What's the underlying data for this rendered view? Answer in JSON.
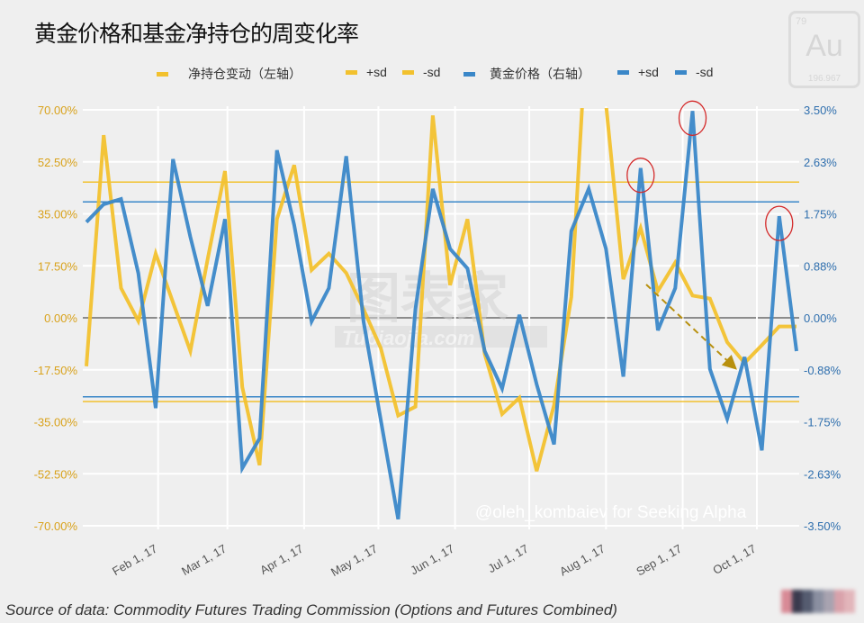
{
  "title": "黄金价格和基金净持仓的周变化率",
  "logo": {
    "number": "79",
    "symbol": "Au",
    "weight": "196.967"
  },
  "legend": [
    {
      "label": "净持仓变动（左轴）",
      "color": "#f2c12e"
    },
    {
      "label": "+sd",
      "color": "#f2c12e"
    },
    {
      "label": "-sd",
      "color": "#f2c12e"
    },
    {
      "label": "黄金价格（右轴）",
      "color": "#3a87c8"
    },
    {
      "label": "+sd",
      "color": "#3a87c8"
    },
    {
      "label": "-sd",
      "color": "#3a87c8"
    }
  ],
  "watermarks": {
    "cn": "图表家",
    "site": "Tubiaojia.com",
    "credit": "@oleh_kombaiev for Seeking Alpha"
  },
  "source": "Source of data: Commodity Futures Trading Commission (Options and Futures Combined)",
  "chart_data": {
    "type": "line",
    "title": "黄金价格和基金净持仓的周变化率",
    "grid": true,
    "legend_position": "top",
    "x": [
      "2017-01-03",
      "2017-01-10",
      "2017-01-17",
      "2017-01-24",
      "2017-01-31",
      "2017-02-07",
      "2017-02-14",
      "2017-02-21",
      "2017-02-28",
      "2017-03-07",
      "2017-03-14",
      "2017-03-21",
      "2017-03-28",
      "2017-04-04",
      "2017-04-11",
      "2017-04-18",
      "2017-04-25",
      "2017-05-02",
      "2017-05-09",
      "2017-05-16",
      "2017-05-23",
      "2017-05-30",
      "2017-06-06",
      "2017-06-13",
      "2017-06-20",
      "2017-06-27",
      "2017-07-04",
      "2017-07-11",
      "2017-07-18",
      "2017-07-25",
      "2017-08-01",
      "2017-08-08",
      "2017-08-15",
      "2017-08-22",
      "2017-08-29",
      "2017-09-05",
      "2017-09-12",
      "2017-09-19",
      "2017-09-26",
      "2017-10-03",
      "2017-10-10",
      "2017-10-17"
    ],
    "x_ticks": [
      {
        "date": "2017-02-01",
        "label": "Feb 1, 17"
      },
      {
        "date": "2017-03-01",
        "label": "Mar 1, 17"
      },
      {
        "date": "2017-04-01",
        "label": "Apr 1, 17"
      },
      {
        "date": "2017-05-01",
        "label": "May 1, 17"
      },
      {
        "date": "2017-06-01",
        "label": "Jun 1, 17"
      },
      {
        "date": "2017-07-01",
        "label": "Jul 1, 17"
      },
      {
        "date": "2017-08-01",
        "label": "Aug 1, 17"
      },
      {
        "date": "2017-09-01",
        "label": "Sep 1, 17"
      },
      {
        "date": "2017-10-01",
        "label": "Oct 1, 17"
      }
    ],
    "y_left": {
      "range": [
        -70,
        70
      ],
      "ticks": [
        "70.00%",
        "52.50%",
        "35.00%",
        "17.50%",
        "0.00%",
        "-17.50%",
        "-35.00%",
        "-52.50%",
        "-70.00%"
      ],
      "color": "#d9a21b"
    },
    "y_right": {
      "range": [
        -3.5,
        3.5
      ],
      "ticks": [
        "3.50%",
        "2.63%",
        "1.75%",
        "0.88%",
        "0.00%",
        "-0.88%",
        "-1.75%",
        "-2.63%",
        "-3.50%"
      ],
      "color": "#2f6fae"
    },
    "series": [
      {
        "name": "净持仓变动（左轴）",
        "axis": "left",
        "color": "#f2c12e",
        "values": [
          -16.3,
          61.5,
          10,
          -1.1,
          21.6,
          5.2,
          -11.2,
          19.7,
          49.4,
          -23.3,
          -49.6,
          33.2,
          51.4,
          16.1,
          21.6,
          15.1,
          2.9,
          -10.2,
          -32.9,
          -29.9,
          68.1,
          11,
          33.2,
          -12.2,
          -32.4,
          -26.9,
          -51.6,
          -29.4,
          7,
          110,
          72,
          13,
          30.2,
          9,
          18.6,
          7.5,
          6.5,
          -8.2,
          -15.2,
          -9.2,
          -2.9,
          -2.9
        ]
      },
      {
        "name": "黄金价格（右轴）",
        "axis": "right",
        "color": "#3a87c8",
        "values": [
          1.61,
          1.91,
          2.0,
          0.75,
          -1.52,
          2.67,
          1.36,
          0.2,
          1.66,
          -2.53,
          -2.03,
          2.82,
          1.56,
          -0.06,
          0.5,
          2.72,
          -0.06,
          -1.72,
          -3.39,
          0.15,
          2.17,
          1.16,
          0.83,
          -0.56,
          -1.19,
          0.05,
          -1.12,
          -2.13,
          1.46,
          2.17,
          1.16,
          -0.99,
          2.52,
          -0.21,
          0.5,
          3.48,
          -0.86,
          -1.7,
          -0.66,
          -2.23,
          1.71,
          -0.56
        ]
      }
    ],
    "reference_lines": [
      {
        "name": "+sd",
        "axis": "left",
        "value": 45.7,
        "color": "#f2c12e"
      },
      {
        "name": "-sd",
        "axis": "left",
        "value": -28.2,
        "color": "#f2c12e"
      },
      {
        "name": "+sd",
        "axis": "right",
        "value": 1.95,
        "color": "#3a87c8"
      },
      {
        "name": "-sd",
        "axis": "right",
        "value": -1.33,
        "color": "#3a87c8"
      }
    ],
    "annotations": {
      "circled_points_series": "黄金价格（右轴）",
      "circled_dates": [
        "2017-08-15",
        "2017-09-05",
        "2017-10-10"
      ],
      "arrow": "dashed downward trend arrow",
      "circle_color": "#d42a2a",
      "arrow_color": "#b8900f"
    }
  }
}
